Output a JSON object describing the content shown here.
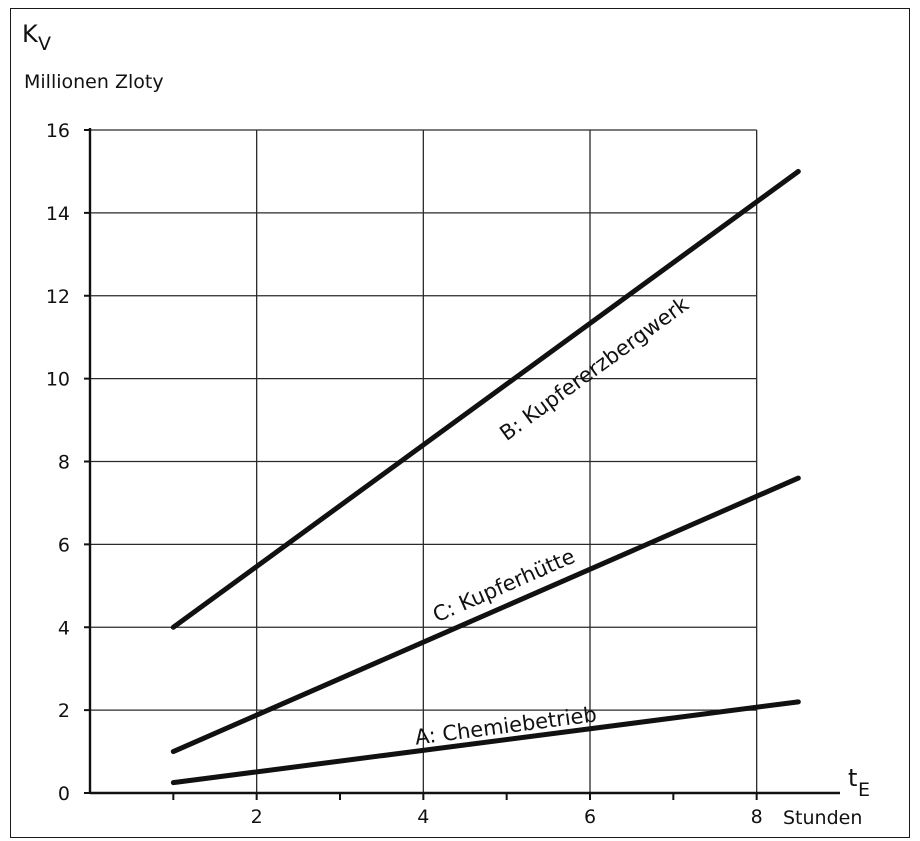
{
  "chart_data": {
    "type": "line",
    "title": "",
    "ylabel_symbol": "K",
    "ylabel_subscript": "V",
    "ylabel_unit": "Millionen Zloty",
    "xlabel_symbol": "t",
    "xlabel_subscript": "E",
    "xlabel_unit": "Stunden",
    "xlim": [
      0,
      9
    ],
    "ylim": [
      0,
      16
    ],
    "x_ticks": [
      1,
      2,
      3,
      4,
      5,
      6,
      7,
      8
    ],
    "x_tick_labels": [
      {
        "x": 2,
        "label": "2"
      },
      {
        "x": 4,
        "label": "4"
      },
      {
        "x": 6,
        "label": "6"
      },
      {
        "x": 8,
        "label": "8"
      }
    ],
    "y_ticks": [
      0,
      2,
      4,
      6,
      8,
      10,
      12,
      14,
      16
    ],
    "y_tick_labels": [
      "0",
      "2",
      "4",
      "6",
      "8",
      "10",
      "12",
      "14",
      "16"
    ],
    "grid_x": [
      2,
      4,
      6,
      8
    ],
    "grid_y": [
      2,
      4,
      6,
      8,
      10,
      12,
      14,
      16
    ],
    "grid": true,
    "legend": "none",
    "series": [
      {
        "name": "B: Kupfererzbergwerk",
        "x": [
          1,
          8.5
        ],
        "y": [
          4.0,
          15.0
        ]
      },
      {
        "name": "C:  Kupferhütte",
        "x": [
          1,
          8.5
        ],
        "y": [
          1.0,
          7.6
        ]
      },
      {
        "name": "A:  Chemiebetrieb",
        "x": [
          1,
          8.5
        ],
        "y": [
          0.25,
          2.2
        ]
      }
    ],
    "annotations": [
      {
        "series": 0,
        "text": "B: Kupfererzbergwerk",
        "x": 6.1,
        "y": 10.1
      },
      {
        "series": 1,
        "text": "C:  Kupferhütte",
        "x": 5.0,
        "y": 4.85
      },
      {
        "series": 2,
        "text": "A:  Chemiebetrieb",
        "x": 5.0,
        "y": 1.45
      }
    ]
  }
}
